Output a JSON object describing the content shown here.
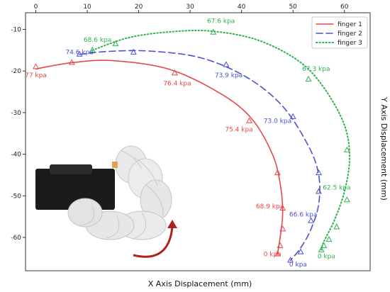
{
  "chart_data": {
    "type": "line",
    "xlabel": "X Axis Displacement (mm)",
    "ylabel": "Y Axis Displacement (mm)",
    "xlim": [
      -2,
      65
    ],
    "ylim": [
      -68,
      -6
    ],
    "xticks": [
      "0",
      "10",
      "20",
      "30",
      "40",
      "50",
      "60"
    ],
    "yticks": [
      "-10",
      "-20",
      "-30",
      "-40",
      "-50",
      "-60"
    ],
    "legend_position": "top-right",
    "grid": false,
    "series": [
      {
        "name": "finger 1",
        "color": "#e8474b",
        "dash": "solid",
        "x": [
          0,
          7,
          15,
          26,
          36,
          42,
          46,
          47.5,
          48,
          47.5,
          47
        ],
        "y": [
          -19.5,
          -18,
          -17.5,
          -19.6,
          -25.5,
          -31.5,
          -40,
          -47,
          -54,
          -60,
          -64
        ],
        "markers": {
          "x": [
            0,
            7,
            27,
            41.5,
            47,
            48,
            48,
            47.5,
            47
          ],
          "y": [
            -19,
            -18,
            -20.5,
            -32,
            -44.5,
            -53,
            -58,
            -62,
            -64
          ]
        },
        "labels": [
          {
            "text": "77 kpa",
            "x": 0,
            "y": -21.5
          },
          {
            "text": "76.4 kpa",
            "x": 27.5,
            "y": -23.5
          },
          {
            "text": "75.4 kpa",
            "x": 39.5,
            "y": -34.5
          },
          {
            "text": "68.9 kpa",
            "x": 45.5,
            "y": -53
          },
          {
            "text": "0 kpa",
            "x": 46,
            "y": -64.5
          }
        ]
      },
      {
        "name": "finger 2",
        "color": "#4a52cf",
        "dash": "dashed",
        "x": [
          8.5,
          14,
          22,
          32,
          41,
          48,
          53,
          55,
          55,
          53.5,
          51.5,
          49.5
        ],
        "y": [
          -16,
          -15.3,
          -15.2,
          -16.8,
          -21.5,
          -28.5,
          -38,
          -45,
          -52,
          -58,
          -62.5,
          -65.5
        ],
        "markers": {
          "x": [
            8.5,
            19,
            37,
            50,
            55,
            55,
            53.5,
            51.5,
            49.5
          ],
          "y": [
            -16,
            -15.5,
            -18.5,
            -31,
            -44.5,
            -49,
            -56,
            -63.5,
            -65.5
          ]
        },
        "labels": [
          {
            "text": "74.6 kpa",
            "x": 8.5,
            "y": -16
          },
          {
            "text": "73.9 kpa",
            "x": 37.5,
            "y": -21.5
          },
          {
            "text": "73.0 kpa",
            "x": 47,
            "y": -32.5
          },
          {
            "text": "66.6 kpa",
            "x": 52,
            "y": -55
          },
          {
            "text": "0 kpa",
            "x": 51,
            "y": -67
          }
        ]
      },
      {
        "name": "finger 3",
        "color": "#2fb24d",
        "dash": "dotted",
        "x": [
          11,
          18,
          26,
          34,
          43,
          51,
          56,
          60,
          61,
          60,
          58,
          56,
          55.5
        ],
        "y": [
          -15,
          -12,
          -10.6,
          -10.4,
          -12.5,
          -17.5,
          -24,
          -33,
          -41,
          -49,
          -56,
          -61,
          -63
        ],
        "markers": {
          "x": [
            11,
            15.5,
            34.5,
            53,
            60.5,
            60.5,
            58.5,
            57,
            56,
            55.5
          ],
          "y": [
            -15,
            -13.5,
            -10.7,
            -22,
            -39,
            -51,
            -57.5,
            -60.5,
            -62,
            -63
          ]
        },
        "labels": [
          {
            "text": "68.6 kpa",
            "x": 12,
            "y": -13
          },
          {
            "text": "67.6 kpa",
            "x": 36,
            "y": -8.5
          },
          {
            "text": "67.3 kpa",
            "x": 54.5,
            "y": -20
          },
          {
            "text": "62.5 kpa",
            "x": 58.5,
            "y": -48.5
          },
          {
            "text": "0 kpa",
            "x": 56.5,
            "y": -65
          }
        ]
      }
    ]
  },
  "photo": {
    "icon": "soft-robotic-finger-photo",
    "arrow_icon": "curved-arrow-icon",
    "arrow_color": "#b0201c"
  }
}
